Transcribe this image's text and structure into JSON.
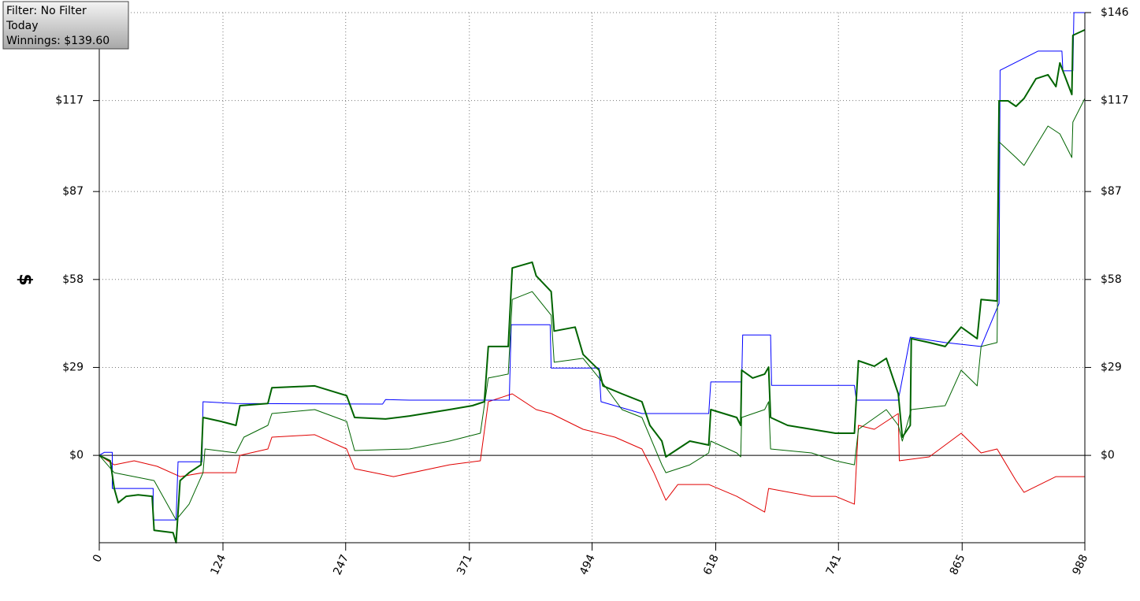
{
  "chart_data": {
    "type": "line",
    "annotations": [
      "Filter: No Filter",
      "Today",
      "Winnings: $139.60"
    ],
    "y_label": "$",
    "xlim": [
      0,
      988
    ],
    "xticks": [
      0,
      124,
      247,
      371,
      494,
      618,
      741,
      865,
      988
    ],
    "ylim": [
      -28.8,
      146
    ],
    "yticks": [
      {
        "value": 0,
        "label": "$0"
      },
      {
        "value": 29,
        "label": "$29"
      },
      {
        "value": 58,
        "label": "$58"
      },
      {
        "value": 87,
        "label": "$87"
      },
      {
        "value": 117,
        "label": "$117"
      },
      {
        "value": 146,
        "label": "$146"
      }
    ],
    "grid": true,
    "series": [
      {
        "color": "#e00000",
        "line_width": 1,
        "x": [
          0,
          15,
          35,
          58,
          81,
          104,
          137,
          141,
          169,
          173,
          216,
          248,
          256,
          295,
          351,
          382,
          390,
          414,
          438,
          453,
          485,
          517,
          544,
          556,
          568,
          580,
          611,
          639,
          667,
          671,
          714,
          738,
          757,
          761,
          777,
          801,
          802,
          832,
          864,
          884,
          900,
          919,
          927,
          959,
          988
        ],
        "values": [
          0,
          -3.1,
          -1.8,
          -3.6,
          -7.0,
          -5.7,
          -5.7,
          0,
          2.1,
          6.0,
          6.8,
          2.1,
          -4.4,
          -7.0,
          -3.1,
          -1.8,
          17.7,
          20.3,
          15.1,
          13.8,
          8.6,
          6.0,
          2.1,
          -5.7,
          -14.8,
          -9.6,
          -9.6,
          -13.5,
          -18.7,
          -10.9,
          -13.5,
          -13.5,
          -16.1,
          9.9,
          8.6,
          13.8,
          -1.8,
          -0.5,
          7.3,
          0.8,
          2.1,
          -8.3,
          -12.2,
          -7.0,
          -7.0
        ]
      },
      {
        "color": "#0000ff",
        "line_width": 1,
        "x": [
          0,
          5,
          13,
          13,
          54,
          54,
          77,
          79,
          103,
          104,
          137,
          284,
          287,
          311,
          382,
          411,
          413,
          452,
          453,
          501,
          503,
          544,
          611,
          613,
          644,
          645,
          673,
          674,
          757,
          759,
          801,
          813,
          848,
          884,
          902,
          903,
          941,
          965,
          966,
          976,
          977,
          988
        ],
        "values": [
          0,
          1.0,
          1.0,
          -10.9,
          -10.9,
          -21.3,
          -21.3,
          -2.1,
          -2.1,
          17.7,
          17.1,
          16.9,
          18.4,
          18.2,
          18.2,
          18.2,
          43.1,
          43.1,
          28.8,
          28.8,
          17.7,
          13.8,
          13.8,
          24.2,
          24.2,
          39.7,
          39.7,
          23.1,
          23.1,
          18.2,
          18.2,
          39.0,
          37.2,
          35.9,
          50.1,
          127.0,
          133.3,
          133.3,
          126.8,
          126.8,
          146.0,
          146.0
        ]
      },
      {
        "color": "#006400",
        "line_width": 1,
        "x": [
          0,
          15,
          55,
          77,
          90,
          104,
          106,
          137,
          145,
          169,
          173,
          216,
          248,
          256,
          311,
          351,
          382,
          390,
          410,
          414,
          434,
          453,
          456,
          485,
          501,
          524,
          544,
          564,
          568,
          592,
          611,
          613,
          639,
          643,
          644,
          667,
          671,
          673,
          714,
          738,
          757,
          761,
          789,
          801,
          805,
          814,
          848,
          864,
          880,
          884,
          900,
          902,
          919,
          927,
          951,
          963,
          975,
          976,
          988
        ],
        "values": [
          0,
          -5.7,
          -8.3,
          -21.3,
          -16.1,
          -5.7,
          2.1,
          0.8,
          6.0,
          9.9,
          13.8,
          15.1,
          11.2,
          1.6,
          2.1,
          4.7,
          7.3,
          25.5,
          26.8,
          51.4,
          54.0,
          46.2,
          30.7,
          32.0,
          25.5,
          15.1,
          12.5,
          -3.1,
          -5.7,
          -3.1,
          0.8,
          4.7,
          0.8,
          -0.5,
          12.5,
          15.1,
          17.7,
          2.1,
          0.8,
          -1.8,
          -3.1,
          8.6,
          15.1,
          9.9,
          4.7,
          15.1,
          16.4,
          28.1,
          22.9,
          35.9,
          37.2,
          103.4,
          98.2,
          95.6,
          108.6,
          106.0,
          98.2,
          109.9,
          117.7
        ]
      },
      {
        "color": "#006400",
        "line_width": 2,
        "x": [
          0,
          11,
          15,
          19,
          27,
          39,
          53,
          55,
          74,
          77,
          81,
          90,
          102,
          104,
          122,
          137,
          141,
          169,
          173,
          216,
          248,
          256,
          287,
          311,
          351,
          374,
          386,
          390,
          410,
          414,
          434,
          438,
          453,
          456,
          477,
          485,
          501,
          505,
          524,
          544,
          552,
          564,
          568,
          580,
          592,
          611,
          613,
          639,
          643,
          644,
          655,
          667,
          671,
          673,
          690,
          714,
          738,
          757,
          761,
          777,
          789,
          801,
          805,
          813,
          814,
          832,
          848,
          864,
          880,
          884,
          900,
          902,
          911,
          919,
          927,
          939,
          951,
          959,
          963,
          975,
          976,
          988
        ],
        "values": [
          0,
          -1.8,
          -10.9,
          -15.6,
          -13.5,
          -13.0,
          -13.5,
          -24.7,
          -25.5,
          -28.8,
          -8.3,
          -5.7,
          -3.1,
          12.5,
          11.2,
          9.9,
          16.4,
          17.1,
          22.3,
          22.9,
          19.7,
          12.5,
          12.0,
          13.0,
          15.1,
          16.4,
          17.7,
          35.9,
          35.9,
          61.8,
          63.7,
          59.2,
          54.0,
          41.0,
          42.3,
          33.3,
          28.1,
          22.9,
          20.3,
          17.7,
          9.9,
          4.7,
          -0.5,
          2.1,
          4.7,
          3.4,
          15.1,
          12.5,
          9.9,
          28.1,
          25.5,
          26.8,
          29.1,
          12.5,
          9.9,
          8.6,
          7.3,
          7.3,
          31.2,
          29.4,
          32.0,
          20.3,
          6.0,
          9.9,
          38.5,
          37.2,
          35.9,
          42.3,
          38.5,
          51.4,
          50.9,
          116.9,
          116.9,
          115.1,
          117.7,
          124.2,
          125.5,
          121.6,
          129.4,
          119.0,
          138.5,
          140.3
        ]
      }
    ]
  }
}
